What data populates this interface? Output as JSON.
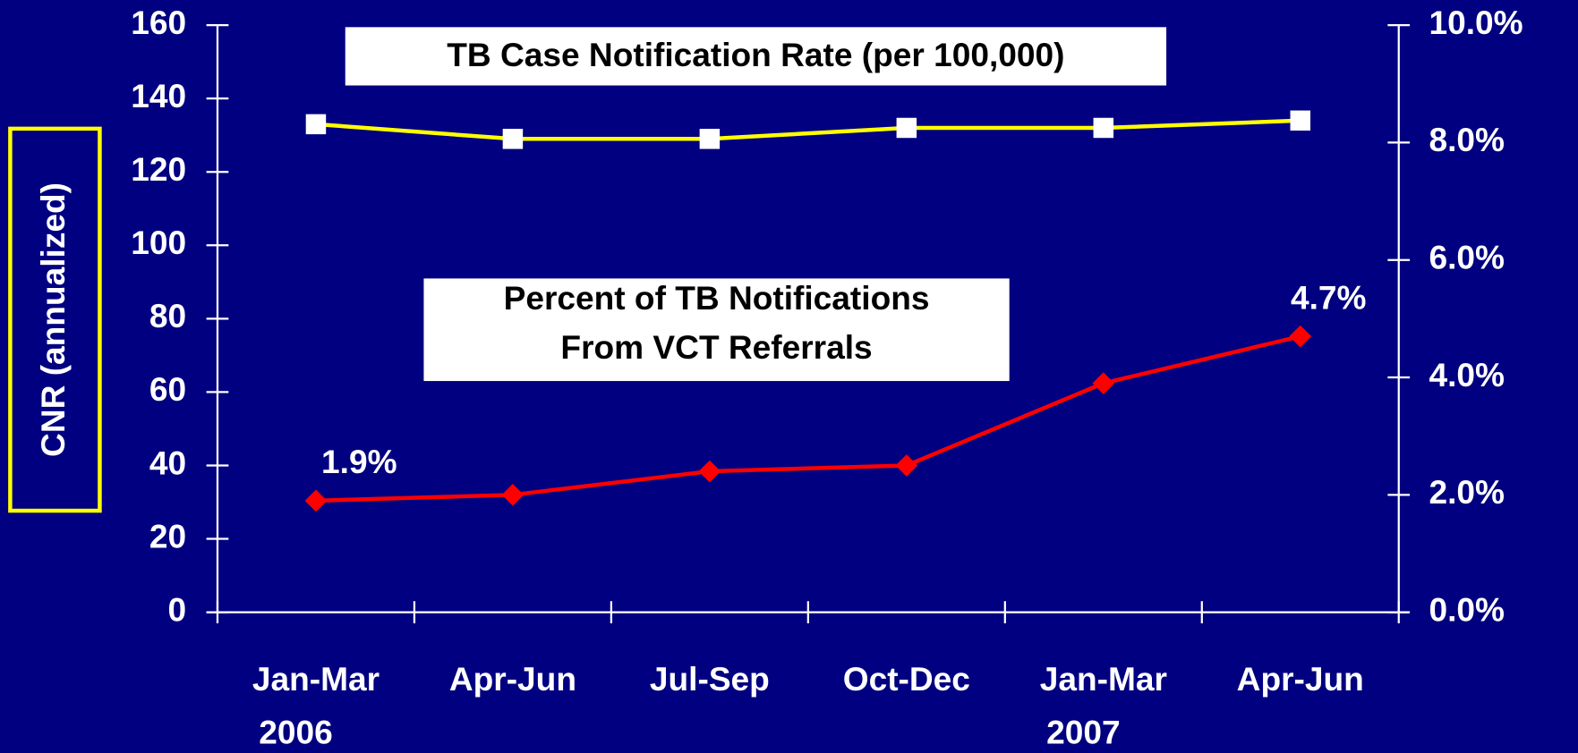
{
  "chart_data": {
    "type": "line",
    "title": "TB Case Notification Rate (per 100,000)",
    "annotation_lines": [
      "Percent of TB Notifications",
      "From VCT Referrals"
    ],
    "ylabel": "CNR (annualized)",
    "categories": [
      "Jan-Mar",
      "Apr-Jun",
      "Jul-Sep",
      "Oct-Dec",
      "Jan-Mar",
      "Apr-Jun"
    ],
    "x_group_labels": [
      "2006",
      null,
      null,
      null,
      "2007",
      null
    ],
    "series": [
      {
        "name": "TB Case Notification Rate (per 100,000)",
        "color": "#ffff00",
        "marker_color": "#ffffff",
        "marker": "square",
        "values": [
          133,
          129,
          129,
          132,
          132,
          134
        ]
      },
      {
        "name": "Percent of TB Notifications From VCT Referrals",
        "color": "#ff0000",
        "marker_color": "#ff0000",
        "marker": "diamond",
        "axis": "y2",
        "values": [
          1.9,
          2.0,
          2.4,
          2.5,
          3.9,
          4.7
        ],
        "value_labels": [
          "1.9%",
          null,
          null,
          null,
          null,
          "4.7%"
        ]
      }
    ],
    "ylim": [
      0,
      160
    ],
    "yticks": [
      0,
      20,
      40,
      60,
      80,
      100,
      120,
      140,
      160
    ],
    "y2lim": [
      0,
      10
    ],
    "y2ticks": [
      {
        "value": 0,
        "label": "0.0%"
      },
      {
        "value": 2,
        "label": "2.0%"
      },
      {
        "value": 4,
        "label": "4.0%"
      },
      {
        "value": 6,
        "label": "6.0%"
      },
      {
        "value": 8,
        "label": "8.0%"
      },
      {
        "value": 10,
        "label": "10.0%"
      }
    ],
    "grid": false
  }
}
